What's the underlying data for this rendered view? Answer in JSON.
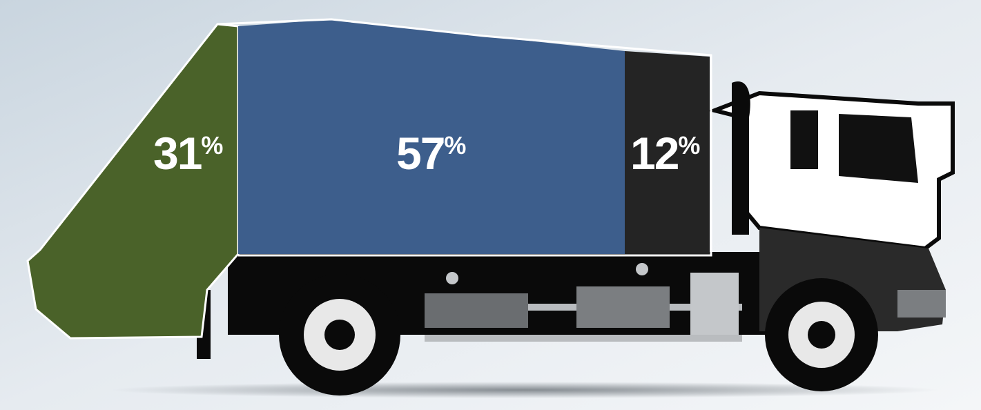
{
  "segments": [
    {
      "value": "31",
      "unit": "%"
    },
    {
      "value": "57",
      "unit": "%"
    },
    {
      "value": "12",
      "unit": "%"
    }
  ]
}
